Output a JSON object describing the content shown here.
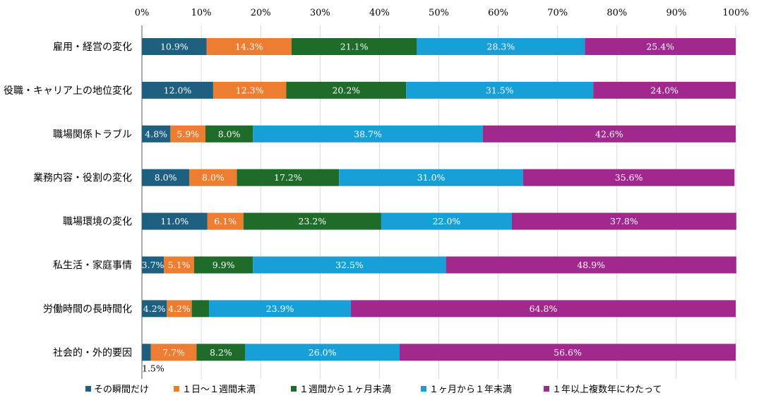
{
  "chart_data": {
    "type": "bar",
    "orientation": "horizontal",
    "stacked": "percent",
    "categories": [
      "雇用・経営の変化",
      "役職・キャリア上の地位変化",
      "職場関係トラブル",
      "業務内容・役割の変化",
      "職場環境の変化",
      "私生活・家庭事情",
      "労働時間の長時間化",
      "社会的・外的要因"
    ],
    "series": [
      {
        "name": "その瞬間だけ",
        "color": "#1f5f80",
        "values": [
          10.9,
          12.0,
          4.8,
          8.0,
          11.0,
          3.7,
          4.2,
          1.5
        ],
        "labels": [
          "10.9%",
          "12.0%",
          "4.8%",
          "8.0%",
          "11.0%",
          "3.7%",
          "4.2%",
          "1.5%"
        ]
      },
      {
        "name": "１日～１週間未満",
        "color": "#ed7d31",
        "values": [
          14.3,
          12.3,
          5.9,
          8.0,
          6.1,
          5.1,
          4.2,
          7.7
        ],
        "labels": [
          "14.3%",
          "12.3%",
          "5.9%",
          "8.0%",
          "6.1%",
          "5.1%",
          "4.2%",
          "7.7%"
        ]
      },
      {
        "name": "１週間から１ヶ月未満",
        "color": "#1e6b2a",
        "values": [
          21.1,
          20.2,
          8.0,
          17.2,
          23.2,
          9.9,
          2.9,
          8.2
        ],
        "labels": [
          "21.1%",
          "20.2%",
          "8.0%",
          "17.2%",
          "23.2%",
          "9.9%",
          "",
          "8.2%"
        ]
      },
      {
        "name": "１ヶ月から１年未満",
        "color": "#17a0d8",
        "values": [
          28.3,
          31.5,
          38.7,
          31.0,
          22.0,
          32.5,
          23.9,
          26.0
        ],
        "labels": [
          "28.3%",
          "31.5%",
          "38.7%",
          "31.0%",
          "22.0%",
          "32.5%",
          "23.9%",
          "26.0%"
        ]
      },
      {
        "name": "１年以上複数年にわたって",
        "color": "#a1298e",
        "values": [
          25.4,
          24.0,
          42.6,
          35.6,
          37.8,
          48.9,
          64.8,
          56.6
        ],
        "labels": [
          "25.4%",
          "24.0%",
          "42.6%",
          "35.6%",
          "37.8%",
          "48.9%",
          "64.8%",
          "56.6%"
        ]
      }
    ],
    "x_ticks": [
      "0%",
      "10%",
      "20%",
      "30%",
      "40%",
      "50%",
      "60%",
      "70%",
      "80%",
      "90%",
      "100%"
    ],
    "xlim": [
      0,
      100
    ],
    "grid": true,
    "legend": "bottom",
    "title": "",
    "xlabel": "",
    "ylabel": ""
  }
}
